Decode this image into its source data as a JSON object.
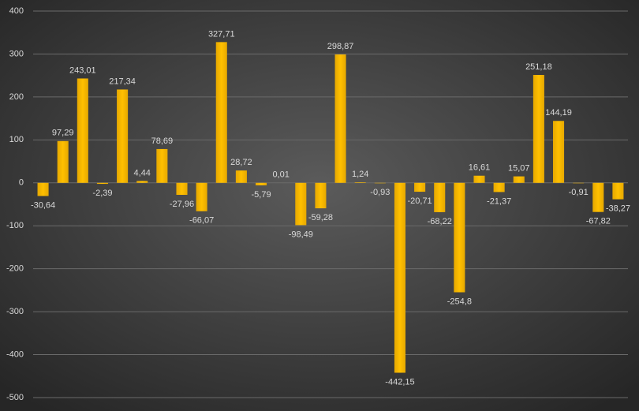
{
  "chart_data": {
    "type": "bar",
    "values": [
      -30.64,
      97.29,
      243.01,
      -2.39,
      217.34,
      4.44,
      78.69,
      -27.96,
      -66.07,
      327.71,
      28.72,
      -5.79,
      0.01,
      -98.49,
      -59.28,
      298.87,
      1.24,
      -0.93,
      -442.15,
      -20.71,
      -68.22,
      -254.8,
      16.61,
      -21.37,
      15.07,
      251.18,
      144.19,
      -0.91,
      -67.82,
      -38.27
    ],
    "value_labels": [
      "-30,64",
      "97,29",
      "243,01",
      "-2,39",
      "217,34",
      "4,44",
      "78,69",
      "-27,96",
      "-66,07",
      "327,71",
      "28,72",
      "-5,79",
      "0,01",
      "-98,49",
      "-59,28",
      "298,87",
      "1,24",
      "-0,93",
      "-442,15",
      "-20,71",
      "-68,22",
      "-254,8",
      "16,61",
      "-21,37",
      "15,07",
      "251,18",
      "144,19",
      "-0,91",
      "-67,82",
      "-38,27"
    ],
    "color": "#ffc000",
    "ylim": [
      -500,
      400
    ],
    "yticks": [
      400,
      300,
      200,
      100,
      0,
      -100,
      -200,
      -300,
      -400,
      -500
    ],
    "grid": true
  }
}
